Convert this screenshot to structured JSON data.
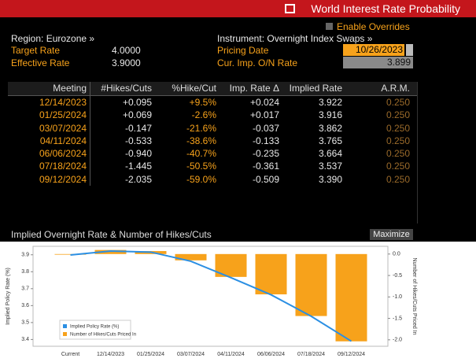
{
  "header": {
    "title": "World Interest Rate Probability",
    "overrides": "Enable Overrides"
  },
  "info": {
    "region": "Region: Eurozone »",
    "instrument": "Instrument: Overnight Index Swaps »",
    "target_label": "Target Rate",
    "target_value": "4.0000",
    "effective_label": "Effective Rate",
    "effective_value": "3.9000",
    "pricing_label": "Pricing Date",
    "pricing_value": "10/26/2023",
    "onrate_label": "Cur. Imp. O/N Rate",
    "onrate_value": "3.899"
  },
  "table": {
    "columns": [
      "Meeting",
      "#Hikes/Cuts",
      "%Hike/Cut",
      "Imp. Rate Δ",
      "Implied Rate",
      "A.R.M."
    ],
    "rows": [
      [
        "12/14/2023",
        "+0.095",
        "+9.5%",
        "+0.024",
        "3.922",
        "0.250"
      ],
      [
        "01/25/2024",
        "+0.069",
        "-2.6%",
        "+0.017",
        "3.916",
        "0.250"
      ],
      [
        "03/07/2024",
        "-0.147",
        "-21.6%",
        "-0.037",
        "3.862",
        "0.250"
      ],
      [
        "04/11/2024",
        "-0.533",
        "-38.6%",
        "-0.133",
        "3.765",
        "0.250"
      ],
      [
        "06/06/2024",
        "-0.940",
        "-40.7%",
        "-0.235",
        "3.664",
        "0.250"
      ],
      [
        "07/18/2024",
        "-1.445",
        "-50.5%",
        "-0.361",
        "3.537",
        "0.250"
      ],
      [
        "09/12/2024",
        "-2.035",
        "-59.0%",
        "-0.509",
        "3.390",
        "0.250"
      ]
    ]
  },
  "maximize": "Maximize",
  "chart_data": {
    "type": "bar-line",
    "title": "Implied Overnight Rate & Number of Hikes/Cuts",
    "categories": [
      "Current",
      "12/14/2023",
      "01/25/2024",
      "03/07/2024",
      "04/11/2024",
      "06/06/2024",
      "07/18/2024",
      "09/12/2024"
    ],
    "series": [
      {
        "name": "Implied Policy Rate (%)",
        "color": "#2b8fe3",
        "type": "line",
        "values": [
          3.899,
          3.922,
          3.916,
          3.862,
          3.765,
          3.664,
          3.537,
          3.39
        ]
      },
      {
        "name": "Number of Hikes/Cuts Priced In",
        "color": "#f7a21b",
        "type": "bar",
        "axis": "y2",
        "values": [
          0,
          0.095,
          0.069,
          -0.147,
          -0.533,
          -0.94,
          -1.445,
          -2.035
        ]
      }
    ],
    "ylabel": "Implied Policy Rate (%)",
    "y2label": "Number of Hikes/Cuts Priced In",
    "ylim": [
      3.36,
      3.95
    ],
    "yticks": [
      3.4,
      3.5,
      3.6,
      3.7,
      3.8,
      3.9
    ],
    "y2lim": [
      -2.15,
      0.18
    ],
    "y2ticks": [
      {
        "value": 0,
        "label": "0.0"
      },
      -0.5,
      {
        "value": -1,
        "label": "-1.0"
      },
      -1.5,
      {
        "value": -2,
        "label": "-2.0"
      }
    ],
    "legend": "bottom-left"
  }
}
